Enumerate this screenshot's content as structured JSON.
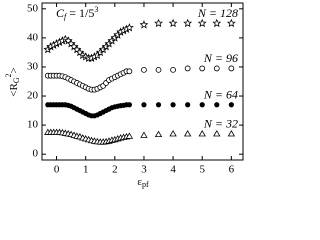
{
  "chart_data": {
    "type": "scatter",
    "x_label": {
      "main": "ε",
      "sub": "pf"
    },
    "y_label": {
      "open": "<R",
      "sub": "G",
      "sup": "2",
      "close": ">"
    },
    "annotation": {
      "main": "C",
      "sub": "f",
      "rest": " = 1/5",
      "sup": "3"
    },
    "x": [
      -0.3,
      -0.2,
      -0.1,
      0,
      0.1,
      0.2,
      0.3,
      0.4,
      0.5,
      0.6,
      0.7,
      0.8,
      0.9,
      1.0,
      1.1,
      1.2,
      1.3,
      1.4,
      1.5,
      1.6,
      1.7,
      1.8,
      1.9,
      2.0,
      2.1,
      2.2,
      2.3,
      2.4,
      2.5,
      3.0,
      3.5,
      4.0,
      4.5,
      5.0,
      5.5,
      6.0
    ],
    "series": [
      {
        "name": "N = 128",
        "marker": "star",
        "color": "#000000",
        "values": [
          36,
          37,
          37.5,
          38,
          38.5,
          39,
          39.5,
          39,
          38,
          37,
          36,
          35,
          34,
          33.5,
          33,
          33,
          33.5,
          34,
          35,
          36,
          37,
          38,
          39,
          40,
          41,
          42,
          42.5,
          43,
          43.5,
          44.5,
          45,
          45,
          45,
          45,
          45,
          45
        ]
      },
      {
        "name": "N = 96",
        "marker": "circle-open",
        "color": "#000000",
        "values": [
          27,
          27,
          27,
          27,
          27,
          26.8,
          26.5,
          26,
          25.5,
          25,
          24.5,
          24,
          23.5,
          23,
          22.5,
          22.2,
          22.2,
          22.5,
          23,
          23.5,
          24.5,
          25.5,
          26,
          26.5,
          27,
          27.5,
          28,
          28.5,
          28.5,
          29,
          29,
          29,
          29.5,
          29.5,
          29.5,
          29.5
        ]
      },
      {
        "name": "N = 64",
        "marker": "circle",
        "color": "#000000",
        "values": [
          17,
          17,
          17,
          17,
          17,
          17,
          17,
          16.8,
          16.5,
          16,
          15.5,
          15,
          14.5,
          14,
          13.5,
          13.2,
          13.2,
          13.5,
          14,
          14.5,
          15,
          15.5,
          16,
          16.3,
          16.5,
          16.7,
          16.8,
          17,
          17,
          17,
          17,
          17,
          17,
          17,
          17,
          17
        ]
      },
      {
        "name": "N = 32",
        "marker": "triangle-open",
        "color": "#000000",
        "values": [
          7.5,
          7.5,
          7.5,
          7.5,
          7.5,
          7.4,
          7.2,
          7,
          6.8,
          6.5,
          6.2,
          6,
          5.6,
          5.3,
          5,
          4.7,
          4.5,
          4.3,
          4.2,
          4.2,
          4.3,
          4.5,
          4.8,
          5,
          5.3,
          5.6,
          5.8,
          6,
          6.2,
          6.5,
          6.8,
          7,
          7,
          7,
          7,
          7
        ]
      }
    ],
    "xlim": [
      -0.5,
      6.4
    ],
    "ylim": [
      -2,
      52
    ],
    "xticks": [
      0,
      1,
      2,
      3,
      4,
      5,
      6
    ],
    "yticks": [
      0,
      10,
      20,
      30,
      40,
      50
    ]
  }
}
